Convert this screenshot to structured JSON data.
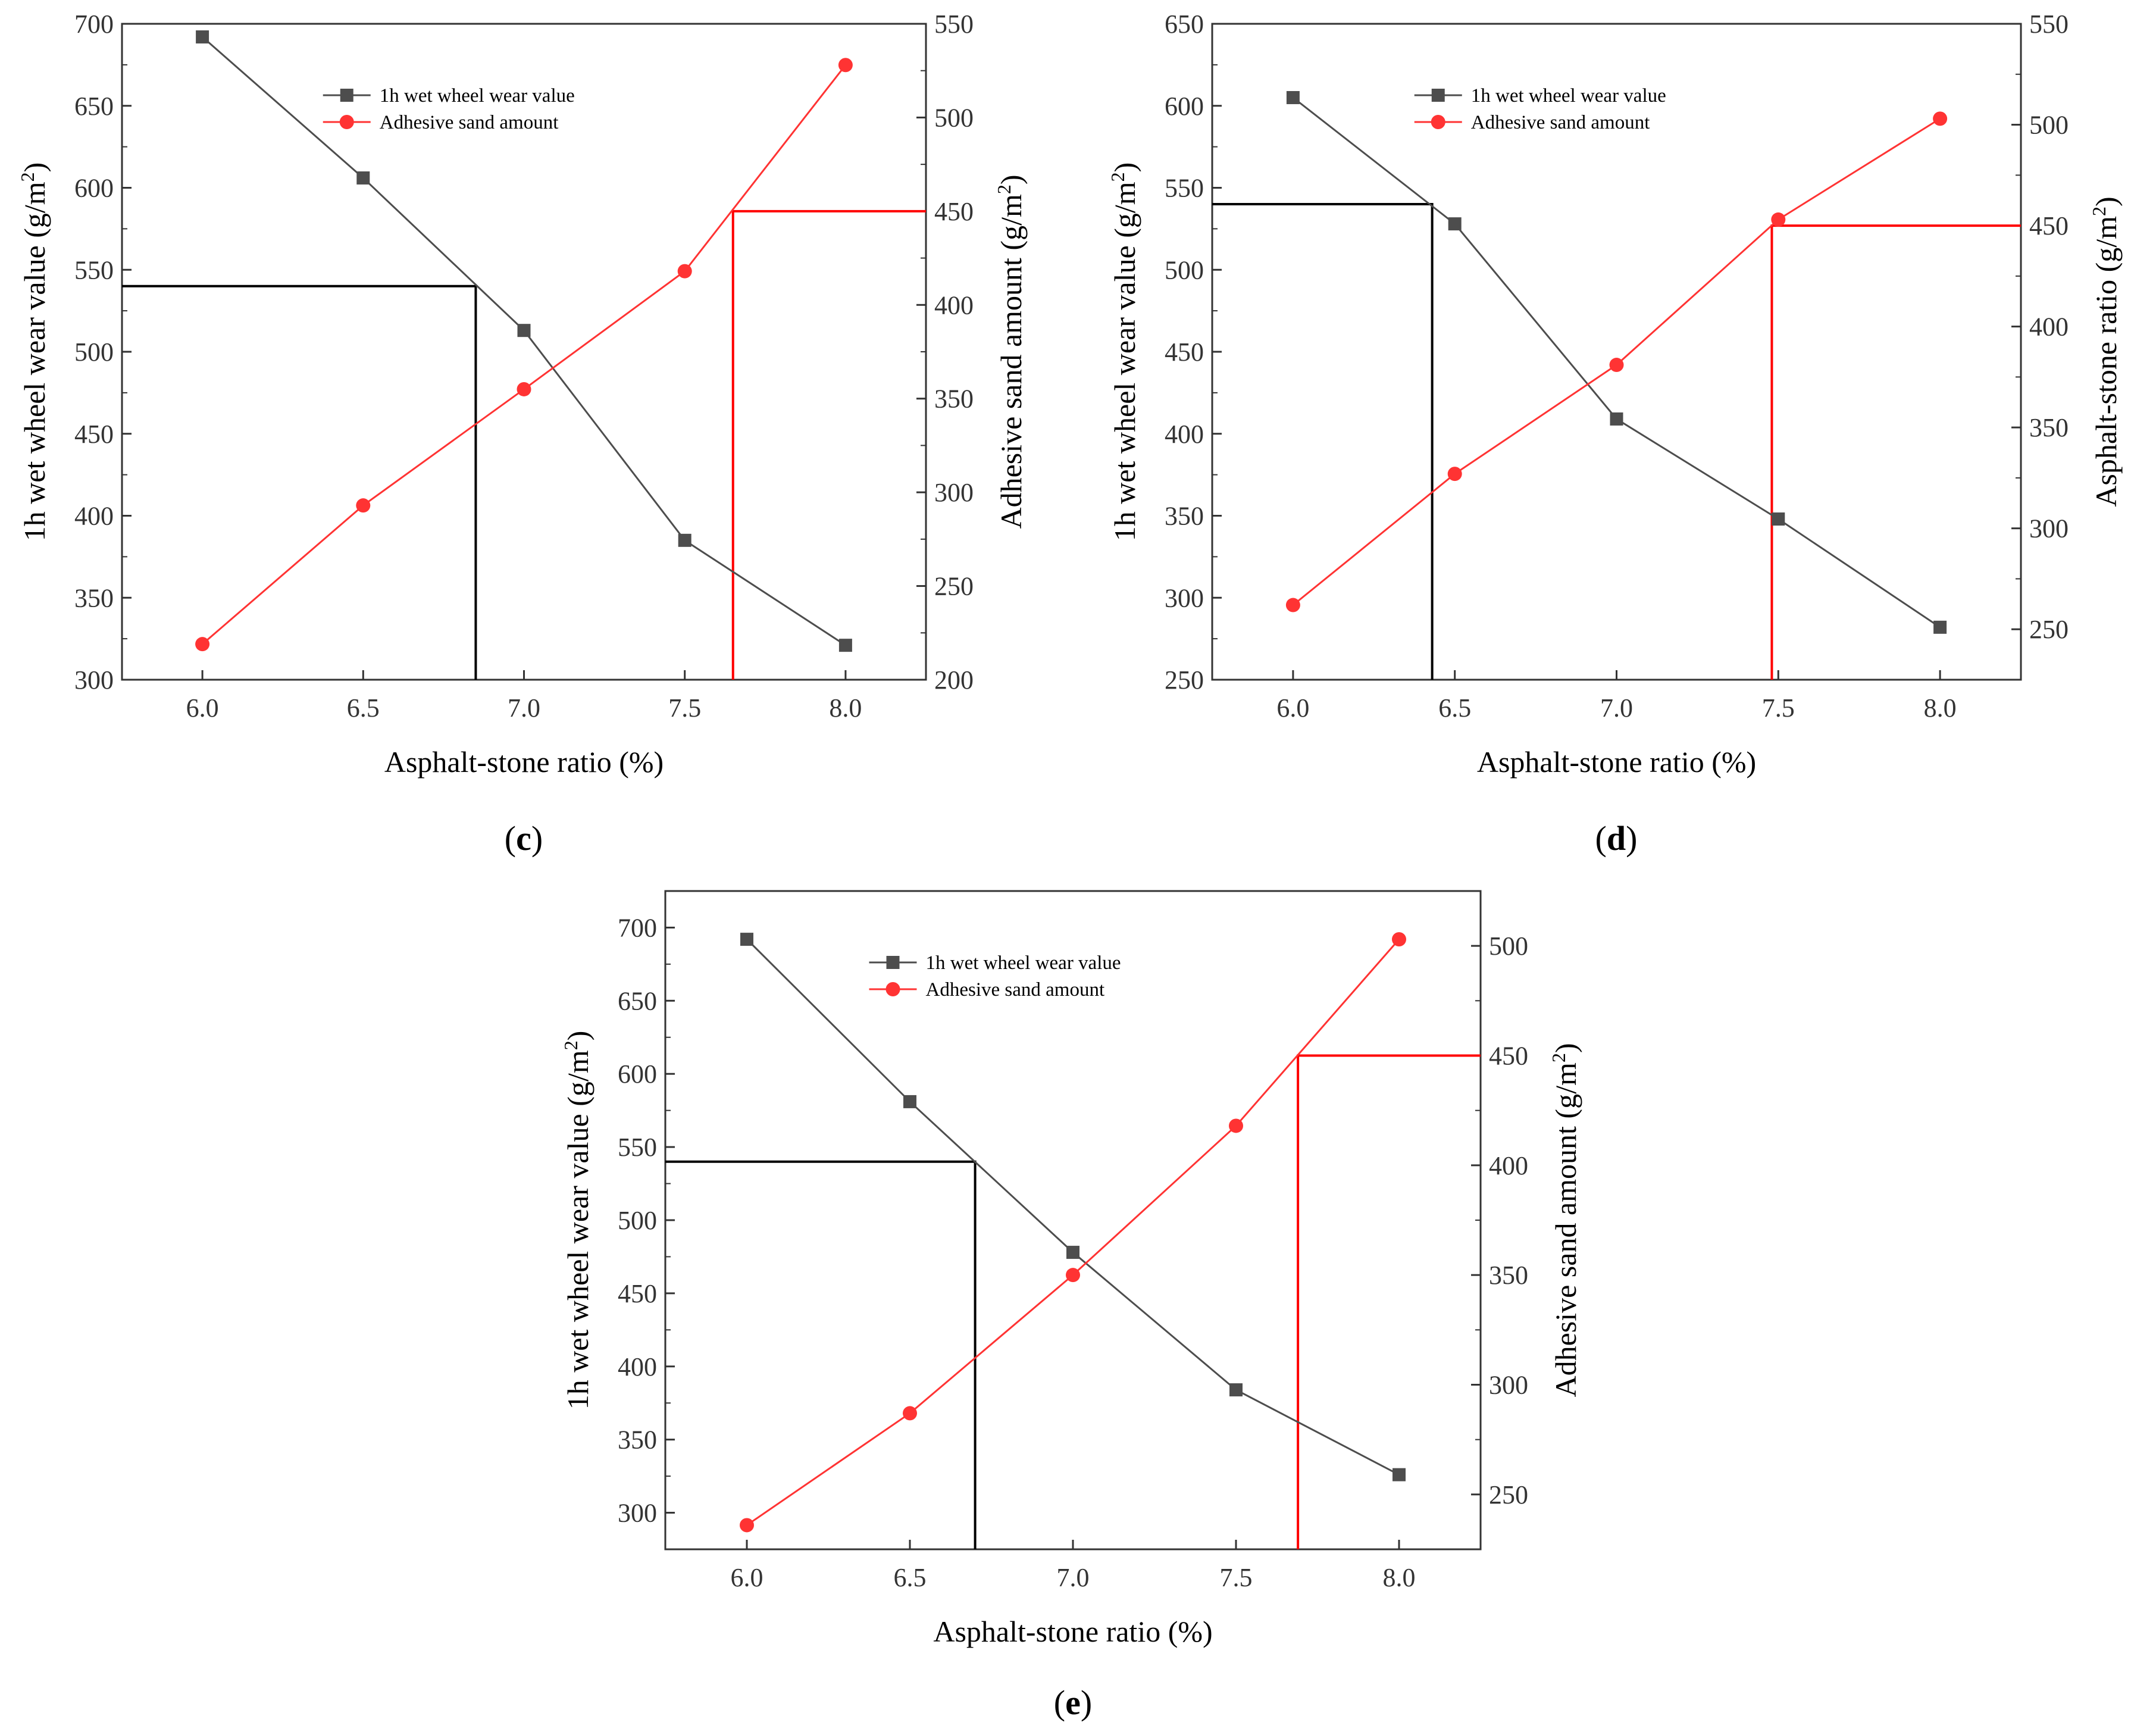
{
  "chart_data": [
    {
      "panel": "c",
      "panel_label": {
        "open": "(",
        "letter": "c",
        "close": ")"
      },
      "type": "line",
      "title": "",
      "xlabel": "Asphalt-stone ratio (%)",
      "ylabel_left": "1h wet wheel wear value (g/m2)",
      "ylabel_left_parts": [
        "1h wet wheel wear value (g/m",
        "2",
        ")"
      ],
      "ylabel_right": "Adhesive sand amount (g/m2)",
      "ylabel_right_parts": [
        "Adhesive sand amount (g/m",
        "2",
        ")"
      ],
      "x_ticks": [
        "6.0",
        "6.5",
        "7.0",
        "7.5",
        "8.0"
      ],
      "x_tick_values": [
        6.0,
        6.5,
        7.0,
        7.5,
        8.0
      ],
      "xlim": [
        5.75,
        8.25
      ],
      "ylim_left": [
        300,
        700
      ],
      "yticks_left": [
        300,
        350,
        400,
        450,
        500,
        550,
        600,
        650,
        700
      ],
      "ylim_right": [
        200,
        550
      ],
      "yticks_right": [
        200,
        250,
        300,
        350,
        400,
        450,
        500,
        550
      ],
      "legend_position": "top-center",
      "series": [
        {
          "name": "1h wet wheel wear value",
          "axis": "left",
          "color": "#4d4d4d",
          "marker": "square",
          "x": [
            6.0,
            6.5,
            7.0,
            7.5,
            8.0
          ],
          "values": [
            692,
            606,
            513,
            385,
            321
          ]
        },
        {
          "name": "Adhesive sand amount",
          "axis": "right",
          "color": "#ff3333",
          "marker": "circle",
          "x": [
            6.0,
            6.5,
            7.0,
            7.5,
            8.0
          ],
          "values": [
            219,
            293,
            355,
            418,
            528
          ]
        }
      ],
      "reference_lines": [
        {
          "color": "#000000",
          "axis": "left",
          "y": 540,
          "x": 6.85
        },
        {
          "color": "#ff0000",
          "axis": "right",
          "y": 450,
          "x": 7.65
        }
      ]
    },
    {
      "panel": "d",
      "panel_label": {
        "open": "(",
        "letter": "d",
        "close": ")"
      },
      "type": "line",
      "title": "",
      "xlabel": "Asphalt-stone ratio (%)",
      "ylabel_left": "1h wet wheel wear value (g/m2)",
      "ylabel_left_parts": [
        "1h wet wheel wear value (g/m",
        "2",
        ")"
      ],
      "ylabel_right": "Asphalt-stone ratio (g/m2)",
      "ylabel_right_parts": [
        "Asphalt-stone ratio (g/m",
        "2",
        ")"
      ],
      "x_ticks": [
        "6.0",
        "6.5",
        "7.0",
        "7.5",
        "8.0"
      ],
      "x_tick_values": [
        6.0,
        6.5,
        7.0,
        7.5,
        8.0
      ],
      "xlim": [
        5.75,
        8.25
      ],
      "ylim_left": [
        250,
        650
      ],
      "yticks_left": [
        250,
        300,
        350,
        400,
        450,
        500,
        550,
        600,
        650
      ],
      "ylim_right": [
        225,
        550
      ],
      "yticks_right": [
        250,
        300,
        350,
        400,
        450,
        500,
        550
      ],
      "legend_position": "top-center",
      "series": [
        {
          "name": "1h wet wheel wear value",
          "axis": "left",
          "color": "#4d4d4d",
          "marker": "square",
          "x": [
            6.0,
            6.5,
            7.0,
            7.5,
            8.0
          ],
          "values": [
            605,
            528,
            409,
            348,
            282
          ]
        },
        {
          "name": "Adhesive sand amount",
          "axis": "right",
          "color": "#ff3333",
          "marker": "circle",
          "x": [
            6.0,
            6.5,
            7.0,
            7.5,
            8.0
          ],
          "values": [
            262,
            327,
            381,
            453,
            503
          ]
        }
      ],
      "reference_lines": [
        {
          "color": "#000000",
          "axis": "left",
          "y": 540,
          "x": 6.43
        },
        {
          "color": "#ff0000",
          "axis": "right",
          "y": 450,
          "x": 7.48
        }
      ]
    },
    {
      "panel": "e",
      "panel_label": {
        "open": "(",
        "letter": "e",
        "close": ")"
      },
      "type": "line",
      "title": "",
      "xlabel": "Asphalt-stone ratio (%)",
      "ylabel_left": "1h wet wheel wear value (g/m2)",
      "ylabel_left_parts": [
        "1h wet wheel wear value (g/m",
        "2",
        ")"
      ],
      "ylabel_right": "Adhesive sand amount (g/m2)",
      "ylabel_right_parts": [
        "Adhesive sand amount (g/m",
        "2",
        ")"
      ],
      "x_ticks": [
        "6.0",
        "6.5",
        "7.0",
        "7.5",
        "8.0"
      ],
      "x_tick_values": [
        6.0,
        6.5,
        7.0,
        7.5,
        8.0
      ],
      "xlim": [
        5.75,
        8.25
      ],
      "ylim_left": [
        275,
        725
      ],
      "yticks_left": [
        300,
        350,
        400,
        450,
        500,
        550,
        600,
        650,
        700
      ],
      "ylim_right": [
        225,
        525
      ],
      "yticks_right": [
        250,
        300,
        350,
        400,
        450,
        500
      ],
      "legend_position": "top-center",
      "series": [
        {
          "name": "1h wet wheel wear value",
          "axis": "left",
          "color": "#4d4d4d",
          "marker": "square",
          "x": [
            6.0,
            6.5,
            7.0,
            7.5,
            8.0
          ],
          "values": [
            692,
            581,
            478,
            384,
            326
          ]
        },
        {
          "name": "Adhesive sand amount",
          "axis": "right",
          "color": "#ff3333",
          "marker": "circle",
          "x": [
            6.0,
            6.5,
            7.0,
            7.5,
            8.0
          ],
          "values": [
            236,
            287,
            350,
            418,
            503
          ]
        }
      ],
      "reference_lines": [
        {
          "color": "#000000",
          "axis": "left",
          "y": 540,
          "x": 6.7
        },
        {
          "color": "#ff0000",
          "axis": "right",
          "y": 450,
          "x": 7.69
        }
      ]
    }
  ]
}
